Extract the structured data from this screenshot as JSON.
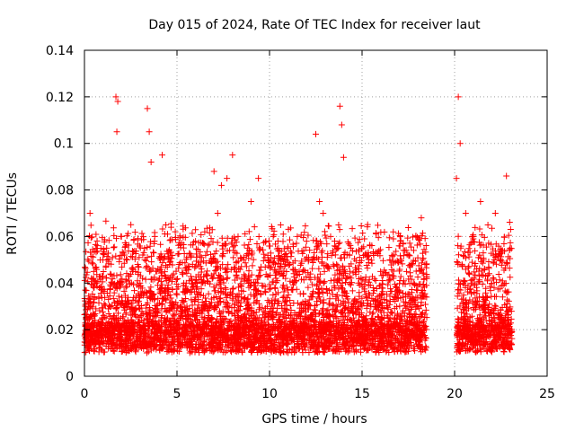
{
  "chart_data": {
    "type": "scatter",
    "title": "Day 015 of 2024, Rate Of TEC Index for receiver laut",
    "xlabel": "GPS time / hours",
    "ylabel": "ROTI / TECUs",
    "xlim": [
      0,
      25
    ],
    "ylim": [
      0,
      0.14
    ],
    "xticks": [
      0,
      5,
      10,
      15,
      20,
      25
    ],
    "xtick_labels": [
      "0",
      "5",
      "10",
      "15",
      "20",
      "25"
    ],
    "yticks": [
      0,
      0.02,
      0.04,
      0.06,
      0.08,
      0.1,
      0.12,
      0.14
    ],
    "ytick_labels": [
      "0",
      "0.02",
      "0.04",
      "0.06",
      "0.08",
      "0.1",
      "0.12",
      "0.14"
    ],
    "grid": true,
    "marker": "plus",
    "color": "#ff0000",
    "series": [
      {
        "x": [
          0.1,
          0.3,
          0.5,
          0.8,
          1.0,
          1.2,
          1.5,
          1.7,
          1.75,
          1.8,
          2.0,
          2.3,
          2.6,
          3.0,
          3.4,
          3.5,
          3.6,
          3.8,
          4.2,
          4.4,
          4.6,
          5.0,
          5.5,
          6.0,
          6.5,
          7.0,
          7.2,
          7.4,
          7.7,
          8.0,
          8.3,
          8.6,
          9.0,
          9.4,
          9.8,
          10.2,
          10.6,
          11.0,
          11.5,
          12.0,
          12.5,
          12.7,
          12.9,
          13.3,
          13.8,
          13.9,
          14.0,
          14.4,
          14.8,
          15.2,
          15.6,
          16.0,
          16.5,
          17.0,
          17.4,
          17.8,
          18.2,
          18.4,
          20.1,
          20.2,
          20.3,
          20.6,
          21.0,
          21.4,
          21.8,
          22.2,
          22.5,
          22.8,
          23.0
        ],
        "y": [
          0.025,
          0.07,
          0.045,
          0.038,
          0.05,
          0.055,
          0.04,
          0.12,
          0.105,
          0.118,
          0.06,
          0.05,
          0.045,
          0.04,
          0.115,
          0.105,
          0.092,
          0.06,
          0.095,
          0.065,
          0.048,
          0.035,
          0.04,
          0.058,
          0.062,
          0.088,
          0.07,
          0.082,
          0.085,
          0.095,
          0.06,
          0.05,
          0.075,
          0.085,
          0.058,
          0.06,
          0.065,
          0.055,
          0.06,
          0.058,
          0.104,
          0.075,
          0.07,
          0.06,
          0.116,
          0.108,
          0.094,
          0.055,
          0.04,
          0.035,
          0.038,
          0.045,
          0.05,
          0.056,
          0.045,
          0.04,
          0.068,
          0.048,
          0.085,
          0.12,
          0.1,
          0.07,
          0.06,
          0.075,
          0.065,
          0.07,
          0.05,
          0.086,
          0.055
        ]
      }
    ],
    "sessions": [
      [
        0.0,
        18.5
      ],
      [
        20.1,
        23.1
      ]
    ]
  }
}
